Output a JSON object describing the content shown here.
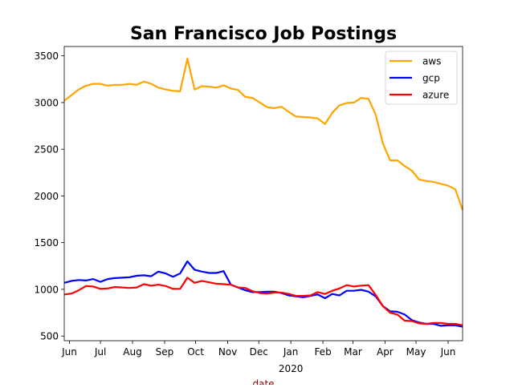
{
  "colors": {
    "aws": "#FFA500",
    "gcp": "#0000FF",
    "azure": "#FF0000",
    "axis_label": "#8B0000"
  },
  "chart_data": {
    "type": "line",
    "title": "San Francisco Job Postings",
    "xlabel": "date",
    "ylabel": "",
    "grid": false,
    "legend_position": "top-right",
    "x": [
      "2019-05-27",
      "2019-06-03",
      "2019-06-10",
      "2019-06-17",
      "2019-06-24",
      "2019-07-01",
      "2019-07-08",
      "2019-07-15",
      "2019-07-22",
      "2019-07-29",
      "2019-08-05",
      "2019-08-12",
      "2019-08-19",
      "2019-08-26",
      "2019-09-02",
      "2019-09-09",
      "2019-09-16",
      "2019-09-23",
      "2019-09-30",
      "2019-10-07",
      "2019-10-14",
      "2019-10-21",
      "2019-10-28",
      "2019-11-04",
      "2019-11-11",
      "2019-11-18",
      "2019-11-25",
      "2019-12-02",
      "2019-12-09",
      "2019-12-16",
      "2019-12-23",
      "2019-12-30",
      "2020-01-06",
      "2020-01-13",
      "2020-01-20",
      "2020-01-27",
      "2020-02-03",
      "2020-02-10",
      "2020-02-17",
      "2020-02-24",
      "2020-03-02",
      "2020-03-09",
      "2020-03-16",
      "2020-03-23",
      "2020-03-30",
      "2020-04-06",
      "2020-04-13",
      "2020-04-20",
      "2020-04-27",
      "2020-05-04",
      "2020-05-11",
      "2020-05-18",
      "2020-05-25",
      "2020-06-01",
      "2020-06-08",
      "2020-06-15"
    ],
    "x_ticks": [
      {
        "date": "2019-06-01",
        "label": "Jun"
      },
      {
        "date": "2019-07-01",
        "label": "Jul"
      },
      {
        "date": "2019-08-01",
        "label": "Aug"
      },
      {
        "date": "2019-09-01",
        "label": "Sep"
      },
      {
        "date": "2019-10-01",
        "label": "Oct"
      },
      {
        "date": "2019-11-01",
        "label": "Nov"
      },
      {
        "date": "2019-12-01",
        "label": "Dec"
      },
      {
        "date": "2020-01-01",
        "label": "Jan"
      },
      {
        "date": "2020-02-01",
        "label": "Feb"
      },
      {
        "date": "2020-03-01",
        "label": "Mar"
      },
      {
        "date": "2020-04-01",
        "label": "Apr"
      },
      {
        "date": "2020-05-01",
        "label": "May"
      },
      {
        "date": "2020-06-01",
        "label": "Jun"
      }
    ],
    "x_year_label": {
      "date": "2020-01-01",
      "label": "2020"
    },
    "xlim": [
      "2019-05-27",
      "2020-06-15"
    ],
    "ylim": [
      450,
      3600
    ],
    "y_ticks": [
      500,
      1000,
      1500,
      2000,
      2500,
      3000,
      3500
    ],
    "series": [
      {
        "name": "aws",
        "color": "#FFA500",
        "values": [
          3020,
          3080,
          3140,
          3180,
          3200,
          3200,
          3180,
          3190,
          3190,
          3200,
          3190,
          3225,
          3200,
          3160,
          3140,
          3125,
          3120,
          3470,
          3140,
          3175,
          3170,
          3160,
          3185,
          3150,
          3135,
          3060,
          3050,
          3000,
          2950,
          2940,
          2955,
          2900,
          2850,
          2845,
          2840,
          2830,
          2770,
          2890,
          2970,
          2995,
          3000,
          3050,
          3040,
          2870,
          2560,
          2380,
          2380,
          2320,
          2270,
          2175,
          2160,
          2150,
          2130,
          2110,
          2070,
          1850
        ]
      },
      {
        "name": "gcp",
        "color": "#0000FF",
        "values": [
          1070,
          1090,
          1100,
          1095,
          1110,
          1080,
          1110,
          1120,
          1125,
          1130,
          1145,
          1150,
          1140,
          1190,
          1170,
          1135,
          1170,
          1300,
          1210,
          1190,
          1175,
          1175,
          1195,
          1050,
          1020,
          990,
          970,
          970,
          975,
          975,
          960,
          935,
          925,
          915,
          930,
          945,
          905,
          950,
          935,
          985,
          985,
          995,
          975,
          925,
          820,
          765,
          760,
          730,
          670,
          645,
          630,
          630,
          610,
          615,
          615,
          600
        ]
      },
      {
        "name": "azure",
        "color": "#FF0000",
        "values": [
          945,
          955,
          990,
          1035,
          1030,
          1005,
          1010,
          1025,
          1020,
          1015,
          1020,
          1055,
          1040,
          1050,
          1035,
          1005,
          1005,
          1125,
          1070,
          1090,
          1075,
          1060,
          1055,
          1050,
          1020,
          1015,
          980,
          960,
          955,
          965,
          965,
          950,
          930,
          930,
          935,
          970,
          950,
          985,
          1010,
          1045,
          1030,
          1040,
          1045,
          940,
          820,
          750,
          730,
          665,
          660,
          635,
          630,
          640,
          640,
          630,
          630,
          615
        ]
      }
    ]
  }
}
